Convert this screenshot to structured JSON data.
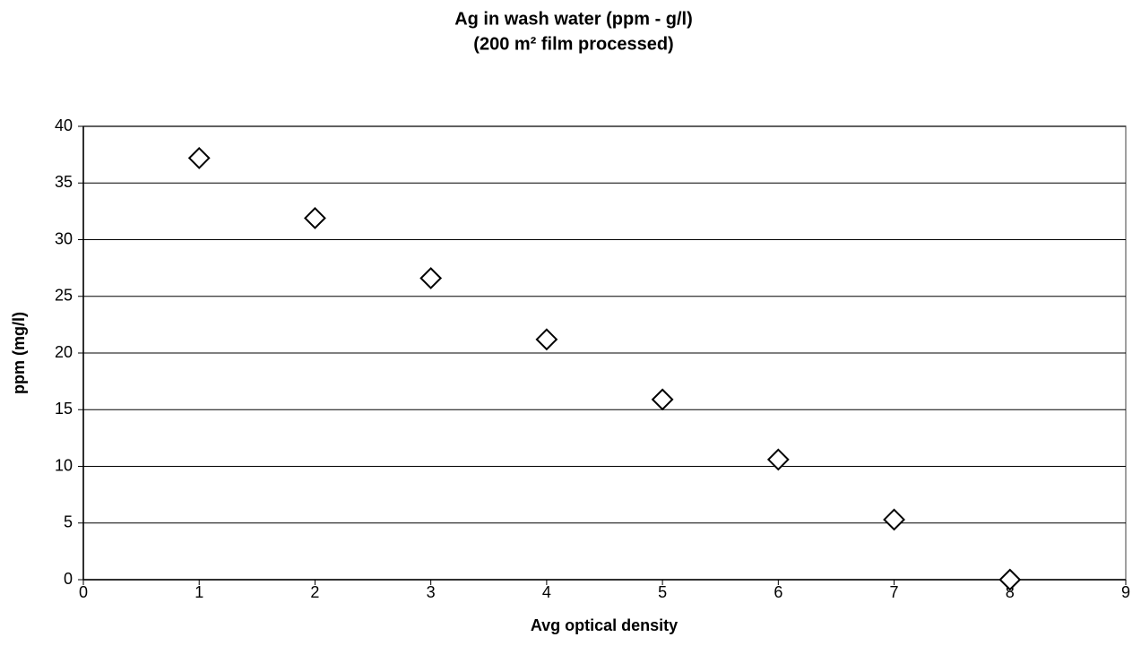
{
  "chart_data": {
    "type": "scatter",
    "title": "Ag in wash water (ppm - g/l)",
    "subtitle": "(200 m² film processed)",
    "x_label": "Avg optical density",
    "y_label": "ppm (mg/l)",
    "x": [
      1,
      2,
      3,
      4,
      5,
      6,
      7,
      8
    ],
    "values": [
      37.2,
      31.9,
      26.6,
      21.2,
      15.9,
      10.6,
      5.3,
      0
    ],
    "color": "#000000",
    "xlim": [
      0,
      9
    ],
    "xticks": [
      0,
      1,
      2,
      3,
      4,
      5,
      6,
      7,
      8,
      9
    ],
    "ylim": [
      0,
      40
    ],
    "yticks": [
      0,
      5,
      10,
      15,
      20,
      25,
      30,
      35,
      40
    ],
    "grid": true
  }
}
